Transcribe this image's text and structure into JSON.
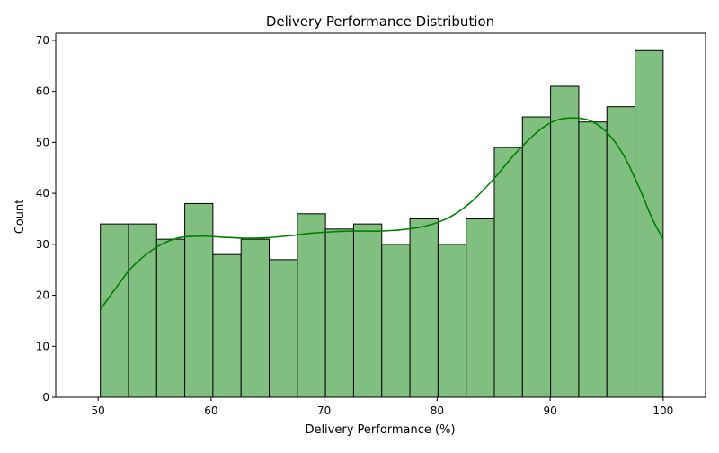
{
  "chart_data": {
    "type": "histogram",
    "title": "Delivery Performance Distribution",
    "xlabel": "Delivery Performance (%)",
    "ylabel": "Count",
    "xlim": [
      46.25,
      103.75
    ],
    "ylim": [
      0,
      71.4
    ],
    "xticks": [
      50,
      60,
      70,
      80,
      90,
      100
    ],
    "yticks": [
      0,
      10,
      20,
      30,
      40,
      50,
      60,
      70
    ],
    "bin_edges": [
      50.2,
      52.69,
      55.18,
      57.67,
      60.16,
      62.65,
      65.14,
      67.63,
      70.12,
      72.61,
      75.1,
      77.59,
      80.08,
      82.57,
      85.06,
      87.55,
      90.04,
      92.53,
      95.02,
      97.51,
      100.0
    ],
    "counts": [
      34,
      34,
      31,
      38,
      28,
      31,
      27,
      36,
      33,
      34,
      30,
      35,
      30,
      35,
      49,
      55,
      61,
      54,
      57,
      68
    ],
    "bar_color": "#81bf81",
    "edge_color": "#000000",
    "grid": false,
    "kde": {
      "color": "#008000",
      "x": [
        50.2,
        51.5,
        53.0,
        55.0,
        57.0,
        59.0,
        61.0,
        63.0,
        65.0,
        67.0,
        69.0,
        71.0,
        73.0,
        75.0,
        77.0,
        79.0,
        81.0,
        83.0,
        85.0,
        87.0,
        89.0,
        90.5,
        92.0,
        93.5,
        95.0,
        96.5,
        98.0,
        99.0,
        100.0
      ],
      "y": [
        17.2,
        21.2,
        25.5,
        29.2,
        31.2,
        31.6,
        31.4,
        31.2,
        31.3,
        31.7,
        32.2,
        32.5,
        32.6,
        32.6,
        32.9,
        33.6,
        35.2,
        38.3,
        42.8,
        48.0,
        52.3,
        54.3,
        54.8,
        54.3,
        52.0,
        47.5,
        40.5,
        35.2,
        31.0
      ]
    }
  }
}
